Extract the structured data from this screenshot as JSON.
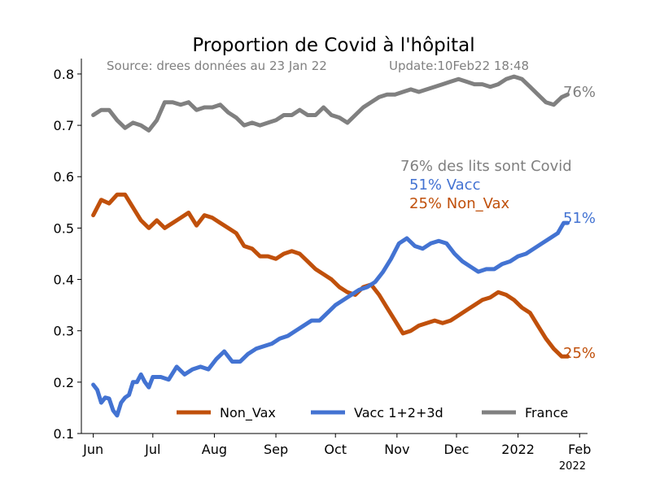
{
  "chart_data": {
    "type": "line",
    "title": "Proportion de Covid à l'hôpital",
    "source_text": "Source: drees données au 23 Jan 22",
    "update_text": "Update:10Feb22 18:48",
    "ylim": [
      0.1,
      0.83
    ],
    "yticks": [
      "0.1",
      "0.2",
      "0.3",
      "0.4",
      "0.5",
      "0.6",
      "0.7",
      "0.8"
    ],
    "xlim": [
      -6,
      249
    ],
    "xticks": [
      {
        "x": 0,
        "label": "Jun"
      },
      {
        "x": 30,
        "label": "Jul"
      },
      {
        "x": 61,
        "label": "Aug"
      },
      {
        "x": 92,
        "label": "Sep"
      },
      {
        "x": 122,
        "label": "Oct"
      },
      {
        "x": 153,
        "label": "Nov"
      },
      {
        "x": 183,
        "label": "Dec"
      },
      {
        "x": 214,
        "label": "2022"
      },
      {
        "x": 245,
        "label": "Feb"
      }
    ],
    "x_offset_label": "2022",
    "annotations": {
      "line1": "76% des lits sont Covid",
      "line2": "51% Vacc",
      "line3": "25% Non_Vax",
      "end_france": "76%",
      "end_vacc": "51%",
      "end_nonvax": "25%"
    },
    "legend": {
      "placement": "lower-center"
    },
    "series": [
      {
        "name": "Non_Vax",
        "color": "#c0500b",
        "points": [
          [
            0,
            0.525
          ],
          [
            4,
            0.555
          ],
          [
            8,
            0.548
          ],
          [
            12,
            0.565
          ],
          [
            16,
            0.565
          ],
          [
            20,
            0.54
          ],
          [
            24,
            0.515
          ],
          [
            28,
            0.5
          ],
          [
            32,
            0.515
          ],
          [
            36,
            0.5
          ],
          [
            40,
            0.51
          ],
          [
            44,
            0.52
          ],
          [
            48,
            0.53
          ],
          [
            52,
            0.505
          ],
          [
            56,
            0.525
          ],
          [
            60,
            0.52
          ],
          [
            64,
            0.51
          ],
          [
            68,
            0.5
          ],
          [
            72,
            0.49
          ],
          [
            76,
            0.465
          ],
          [
            80,
            0.46
          ],
          [
            84,
            0.445
          ],
          [
            88,
            0.445
          ],
          [
            92,
            0.44
          ],
          [
            96,
            0.45
          ],
          [
            100,
            0.455
          ],
          [
            104,
            0.45
          ],
          [
            108,
            0.435
          ],
          [
            112,
            0.42
          ],
          [
            116,
            0.41
          ],
          [
            120,
            0.4
          ],
          [
            124,
            0.385
          ],
          [
            128,
            0.375
          ],
          [
            132,
            0.37
          ],
          [
            136,
            0.385
          ],
          [
            140,
            0.39
          ],
          [
            144,
            0.37
          ],
          [
            148,
            0.345
          ],
          [
            152,
            0.32
          ],
          [
            156,
            0.295
          ],
          [
            160,
            0.3
          ],
          [
            164,
            0.31
          ],
          [
            168,
            0.315
          ],
          [
            172,
            0.32
          ],
          [
            176,
            0.315
          ],
          [
            180,
            0.32
          ],
          [
            184,
            0.33
          ],
          [
            188,
            0.34
          ],
          [
            192,
            0.35
          ],
          [
            196,
            0.36
          ],
          [
            200,
            0.365
          ],
          [
            204,
            0.375
          ],
          [
            208,
            0.37
          ],
          [
            212,
            0.36
          ],
          [
            216,
            0.345
          ],
          [
            220,
            0.335
          ],
          [
            224,
            0.31
          ],
          [
            228,
            0.285
          ],
          [
            232,
            0.265
          ],
          [
            236,
            0.25
          ],
          [
            239,
            0.25
          ]
        ]
      },
      {
        "name": "Vacc 1+2+3d",
        "color": "#4373d2",
        "points": [
          [
            0,
            0.195
          ],
          [
            2,
            0.185
          ],
          [
            4,
            0.16
          ],
          [
            6,
            0.17
          ],
          [
            8,
            0.168
          ],
          [
            10,
            0.145
          ],
          [
            12,
            0.135
          ],
          [
            14,
            0.16
          ],
          [
            16,
            0.17
          ],
          [
            18,
            0.175
          ],
          [
            20,
            0.2
          ],
          [
            22,
            0.2
          ],
          [
            24,
            0.215
          ],
          [
            26,
            0.2
          ],
          [
            28,
            0.19
          ],
          [
            30,
            0.21
          ],
          [
            34,
            0.21
          ],
          [
            38,
            0.205
          ],
          [
            42,
            0.23
          ],
          [
            46,
            0.215
          ],
          [
            50,
            0.225
          ],
          [
            54,
            0.23
          ],
          [
            58,
            0.225
          ],
          [
            62,
            0.245
          ],
          [
            66,
            0.26
          ],
          [
            70,
            0.24
          ],
          [
            74,
            0.24
          ],
          [
            78,
            0.255
          ],
          [
            82,
            0.265
          ],
          [
            86,
            0.27
          ],
          [
            90,
            0.275
          ],
          [
            94,
            0.285
          ],
          [
            98,
            0.29
          ],
          [
            102,
            0.3
          ],
          [
            106,
            0.31
          ],
          [
            110,
            0.32
          ],
          [
            114,
            0.32
          ],
          [
            118,
            0.335
          ],
          [
            122,
            0.35
          ],
          [
            126,
            0.36
          ],
          [
            130,
            0.37
          ],
          [
            134,
            0.38
          ],
          [
            138,
            0.385
          ],
          [
            142,
            0.395
          ],
          [
            146,
            0.415
          ],
          [
            150,
            0.44
          ],
          [
            154,
            0.47
          ],
          [
            158,
            0.48
          ],
          [
            162,
            0.465
          ],
          [
            166,
            0.46
          ],
          [
            170,
            0.47
          ],
          [
            174,
            0.475
          ],
          [
            178,
            0.47
          ],
          [
            182,
            0.45
          ],
          [
            186,
            0.435
          ],
          [
            190,
            0.425
          ],
          [
            194,
            0.415
          ],
          [
            198,
            0.42
          ],
          [
            202,
            0.42
          ],
          [
            206,
            0.43
          ],
          [
            210,
            0.435
          ],
          [
            214,
            0.445
          ],
          [
            218,
            0.45
          ],
          [
            222,
            0.46
          ],
          [
            226,
            0.47
          ],
          [
            230,
            0.48
          ],
          [
            234,
            0.49
          ],
          [
            237,
            0.51
          ],
          [
            239,
            0.51
          ]
        ]
      },
      {
        "name": "France",
        "color": "#808080",
        "points": [
          [
            0,
            0.72
          ],
          [
            4,
            0.73
          ],
          [
            8,
            0.73
          ],
          [
            12,
            0.71
          ],
          [
            16,
            0.695
          ],
          [
            20,
            0.705
          ],
          [
            24,
            0.7
          ],
          [
            28,
            0.69
          ],
          [
            32,
            0.71
          ],
          [
            36,
            0.745
          ],
          [
            40,
            0.745
          ],
          [
            44,
            0.74
          ],
          [
            48,
            0.745
          ],
          [
            52,
            0.73
          ],
          [
            56,
            0.735
          ],
          [
            60,
            0.735
          ],
          [
            64,
            0.74
          ],
          [
            68,
            0.725
          ],
          [
            72,
            0.715
          ],
          [
            76,
            0.7
          ],
          [
            80,
            0.705
          ],
          [
            84,
            0.7
          ],
          [
            88,
            0.705
          ],
          [
            92,
            0.71
          ],
          [
            96,
            0.72
          ],
          [
            100,
            0.72
          ],
          [
            104,
            0.73
          ],
          [
            108,
            0.72
          ],
          [
            112,
            0.72
          ],
          [
            116,
            0.735
          ],
          [
            120,
            0.72
          ],
          [
            124,
            0.715
          ],
          [
            128,
            0.705
          ],
          [
            132,
            0.72
          ],
          [
            136,
            0.735
          ],
          [
            140,
            0.745
          ],
          [
            144,
            0.755
          ],
          [
            148,
            0.76
          ],
          [
            152,
            0.76
          ],
          [
            156,
            0.765
          ],
          [
            160,
            0.77
          ],
          [
            164,
            0.765
          ],
          [
            168,
            0.77
          ],
          [
            172,
            0.775
          ],
          [
            176,
            0.78
          ],
          [
            180,
            0.785
          ],
          [
            184,
            0.79
          ],
          [
            188,
            0.785
          ],
          [
            192,
            0.78
          ],
          [
            196,
            0.78
          ],
          [
            200,
            0.775
          ],
          [
            204,
            0.78
          ],
          [
            208,
            0.79
          ],
          [
            212,
            0.795
          ],
          [
            216,
            0.79
          ],
          [
            220,
            0.775
          ],
          [
            224,
            0.76
          ],
          [
            228,
            0.745
          ],
          [
            232,
            0.74
          ],
          [
            236,
            0.755
          ],
          [
            239,
            0.76
          ]
        ]
      }
    ]
  }
}
